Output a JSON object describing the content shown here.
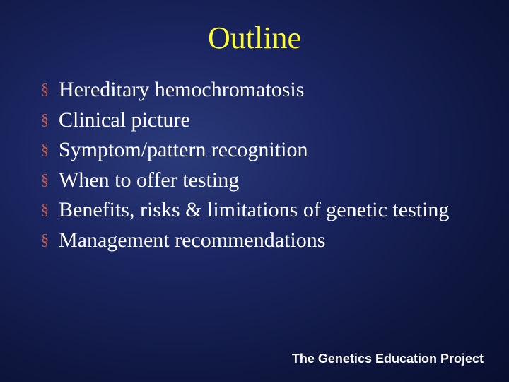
{
  "slide": {
    "title": "Outline",
    "title_color": "#ffff33",
    "bullet_marker": "§",
    "bullet_marker_color": "#c85a4a",
    "bullet_text_color": "#ffffff",
    "bullets": [
      "Hereditary hemochromatosis",
      "Clinical picture",
      "Symptom/pattern recognition",
      "When to offer testing",
      "Benefits, risks & limitations of genetic testing",
      "Management recommendations"
    ],
    "footer": "The Genetics Education Project",
    "footer_color": "#ffffff",
    "background_gradient": [
      "#2a3a7a",
      "#1a2560",
      "#0f1740",
      "#080e30"
    ]
  }
}
